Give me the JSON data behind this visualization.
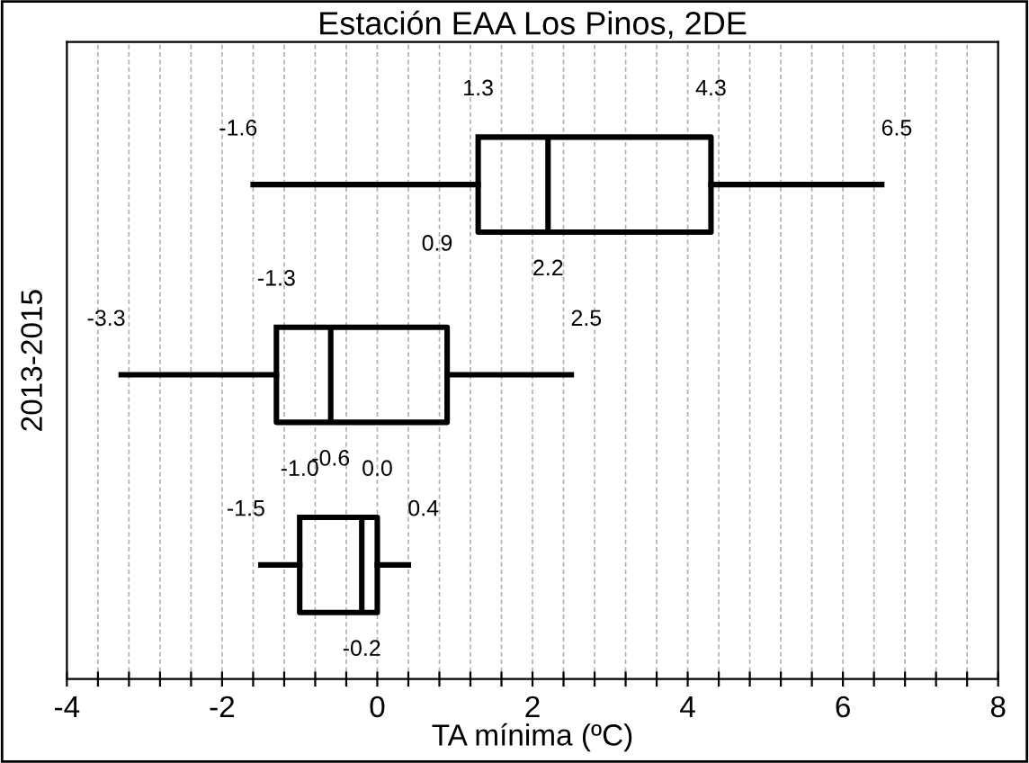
{
  "chart_data": {
    "type": "box",
    "title": "Estación EAA Los Pinos, 2DE",
    "xlabel": "TA mínima (ºC)",
    "ylabel": "2013-2015",
    "orientation": "horizontal",
    "categories": [
      null,
      null,
      null
    ],
    "boxes": [
      {
        "low": -1.6,
        "q1": 1.3,
        "median": 2.2,
        "q3": 4.3,
        "high": 6.5
      },
      {
        "low": -3.3,
        "q1": -1.3,
        "median": -0.6,
        "q3": 0.9,
        "high": 2.5
      },
      {
        "low": -1.5,
        "q1": -1.0,
        "median": -0.2,
        "q3": 0.0,
        "high": 0.4
      }
    ],
    "color": "#000000",
    "value_labels": [
      [
        "-1.6",
        "1.3",
        "2.2",
        "4.3",
        "6.5"
      ],
      [
        "-3.3",
        "-1.3",
        "-0.6",
        "0.9",
        "2.5"
      ],
      [
        "-1.5",
        "-1.0",
        "-0.2",
        "0.0",
        "0.4"
      ]
    ],
    "grid": "x",
    "xlim": [
      -4,
      8
    ],
    "xticks": [
      -4,
      {
        "value": -3.6,
        "label": null
      },
      {
        "value": -3.2,
        "label": null
      },
      {
        "value": -2.8,
        "label": null
      },
      {
        "value": -2.4,
        "label": null
      },
      -2,
      {
        "value": -1.6,
        "label": null
      },
      {
        "value": -1.2,
        "label": null
      },
      {
        "value": -0.8,
        "label": null
      },
      {
        "value": -0.4,
        "label": null
      },
      0,
      {
        "value": 0.4,
        "label": null
      },
      {
        "value": 0.8,
        "label": null
      },
      {
        "value": 1.2,
        "label": null
      },
      {
        "value": 1.6,
        "label": null
      },
      2,
      {
        "value": 2.4,
        "label": null
      },
      {
        "value": 2.8,
        "label": null
      },
      {
        "value": 3.2,
        "label": null
      },
      {
        "value": 3.6,
        "label": null
      },
      4,
      {
        "value": 4.4,
        "label": null
      },
      {
        "value": 4.8,
        "label": null
      },
      {
        "value": 5.2,
        "label": null
      },
      {
        "value": 5.6,
        "label": null
      },
      6,
      {
        "value": 6.4,
        "label": null
      },
      {
        "value": 6.8,
        "label": null
      },
      {
        "value": 7.2,
        "label": null
      },
      {
        "value": 7.6,
        "label": null
      },
      8
    ]
  }
}
